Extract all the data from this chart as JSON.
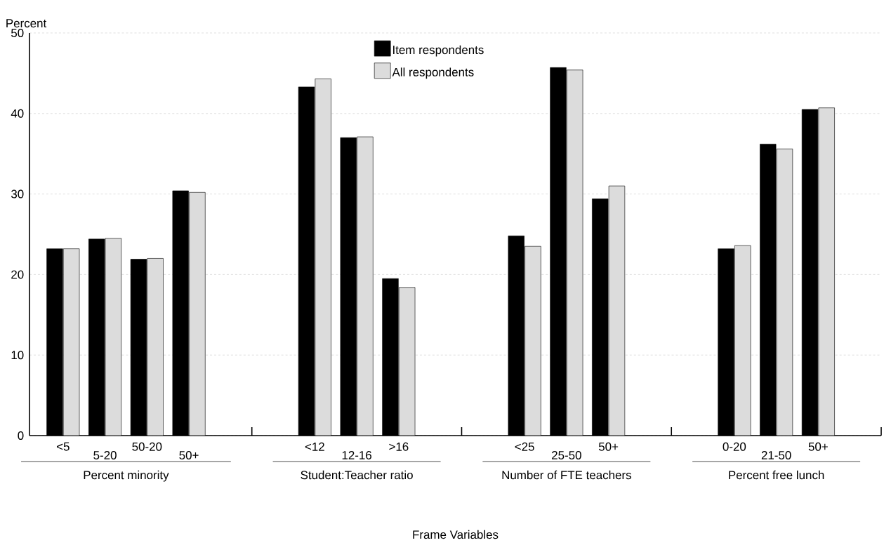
{
  "chart_data": {
    "type": "bar",
    "ylabel": "Percent",
    "categories": [
      "<5",
      "5-20",
      "50-20",
      "50+",
      null,
      null,
      "<12",
      "12-16",
      ">16",
      null,
      null,
      "<25",
      "25-50",
      "50+",
      null,
      null,
      "0-20",
      "21-50",
      "50+"
    ],
    "series": [
      {
        "name": "Item respondents",
        "color": "#000000",
        "values": [
          23.2,
          24.4,
          21.9,
          30.4,
          null,
          null,
          43.3,
          37.0,
          19.5,
          null,
          null,
          24.8,
          45.7,
          29.4,
          null,
          null,
          23.2,
          36.2,
          40.5
        ]
      },
      {
        "name": "All respondents",
        "color": "#dcdcdc",
        "values": [
          23.2,
          24.5,
          22.0,
          30.2,
          null,
          null,
          44.3,
          37.1,
          18.4,
          null,
          null,
          23.5,
          45.4,
          31.0,
          null,
          null,
          23.6,
          35.6,
          40.7
        ]
      }
    ],
    "ylim": [
      0,
      50
    ],
    "yticks": [
      0,
      10,
      20,
      30,
      40,
      50
    ],
    "grid": "y",
    "legend": "top",
    "annotations": [
      "Percent minority",
      "Student:Teacher ratio",
      "Number of FTE teachers",
      "Percent free lunch",
      "Frame Variables"
    ]
  }
}
